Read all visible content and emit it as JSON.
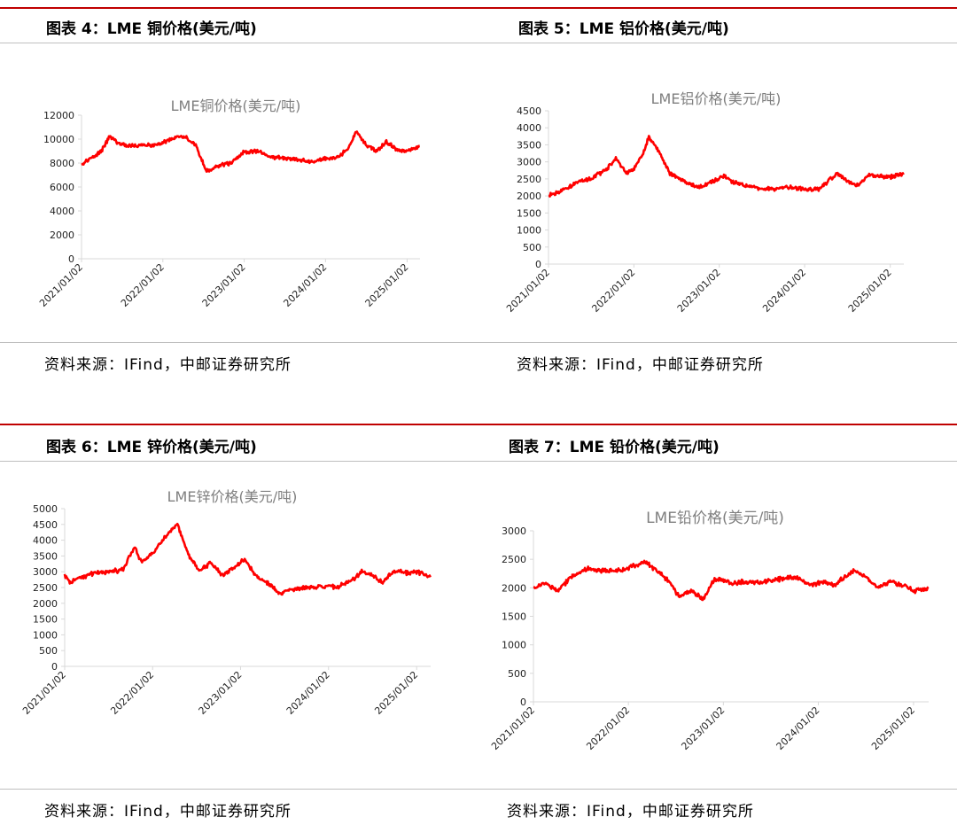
{
  "panels": [
    {
      "id": "p4",
      "figure_title": "图表 4：LME 铜价格(美元/吨)",
      "source": "资料来源：IFind，中邮证券研究所"
    },
    {
      "id": "p5",
      "figure_title": "图表 5：LME 铝价格(美元/吨)",
      "source": "资料来源：IFind，中邮证券研究所"
    },
    {
      "id": "p6",
      "figure_title": "图表 6：LME 锌价格(美元/吨)",
      "source": "资料来源：IFind，中邮证券研究所"
    },
    {
      "id": "p7",
      "figure_title": "图表 7：LME 铅价格(美元/吨)",
      "source": "资料来源：IFind，中邮证券研究所"
    }
  ],
  "colors": {
    "line": "#ff0000",
    "rule": "#c00000",
    "title": "#7f7f7f"
  },
  "chart_data": [
    {
      "type": "line",
      "title": "LME铜价格(美元/吨)",
      "xlabel": "",
      "ylabel": "",
      "ylim": [
        0,
        12000
      ],
      "yticks": [
        0,
        2000,
        4000,
        6000,
        8000,
        10000,
        12000
      ],
      "x_tick_labels": [
        "2021/01/02",
        "2022/01/02",
        "2023/01/02",
        "2024/01/02",
        "2025/01/02"
      ],
      "xlim": [
        "2021/01/02",
        "2025/03/01"
      ],
      "grid": false,
      "series": [
        {
          "color": "#ff0000",
          "x": [
            "2021/01/02",
            "2021/02/15",
            "2021/04/01",
            "2021/05/10",
            "2021/06/20",
            "2021/08/01",
            "2021/10/01",
            "2021/12/01",
            "2022/01/02",
            "2022/03/07",
            "2022/04/20",
            "2022/06/01",
            "2022/07/15",
            "2022/09/01",
            "2022/11/01",
            "2023/01/02",
            "2023/03/01",
            "2023/05/01",
            "2023/07/01",
            "2023/09/01",
            "2023/11/01",
            "2024/01/02",
            "2024/03/01",
            "2024/04/15",
            "2024/05/20",
            "2024/07/01",
            "2024/08/20",
            "2024/10/01",
            "2024/11/15",
            "2025/01/02",
            "2025/02/15",
            "2025/03/01"
          ],
          "y": [
            7900,
            8400,
            9000,
            10300,
            9600,
            9400,
            9500,
            9500,
            9700,
            10200,
            10100,
            9400,
            7300,
            7700,
            8000,
            8900,
            9000,
            8500,
            8400,
            8300,
            8100,
            8400,
            8500,
            9300,
            10700,
            9500,
            9000,
            9800,
            9100,
            9000,
            9300,
            9400
          ]
        }
      ]
    },
    {
      "type": "line",
      "title": "LME铝价格(美元/吨)",
      "xlabel": "",
      "ylabel": "",
      "ylim": [
        0,
        4500
      ],
      "yticks": [
        0,
        500,
        1000,
        1500,
        2000,
        2500,
        3000,
        3500,
        4000,
        4500
      ],
      "x_tick_labels": [
        "2021/01/02",
        "2022/01/02",
        "2023/01/02",
        "2024/01/02",
        "2025/01/02"
      ],
      "xlim": [
        "2021/01/02",
        "2025/03/01"
      ],
      "grid": false,
      "series": [
        {
          "color": "#ff0000",
          "x": [
            "2021/01/02",
            "2021/03/01",
            "2021/05/01",
            "2021/07/01",
            "2021/09/01",
            "2021/10/20",
            "2021/12/01",
            "2022/01/02",
            "2022/02/15",
            "2022/03/07",
            "2022/04/20",
            "2022/06/01",
            "2022/08/01",
            "2022/10/01",
            "2022/12/01",
            "2023/01/20",
            "2023/03/01",
            "2023/05/01",
            "2023/07/01",
            "2023/09/01",
            "2023/11/01",
            "2024/01/02",
            "2024/03/01",
            "2024/05/20",
            "2024/07/01",
            "2024/08/15",
            "2024/10/01",
            "2024/11/15",
            "2025/01/02",
            "2025/02/15",
            "2025/03/01"
          ],
          "y": [
            2000,
            2150,
            2400,
            2500,
            2750,
            3100,
            2650,
            2800,
            3300,
            3750,
            3300,
            2700,
            2450,
            2250,
            2400,
            2600,
            2400,
            2300,
            2200,
            2200,
            2250,
            2200,
            2200,
            2650,
            2450,
            2300,
            2600,
            2600,
            2550,
            2650,
            2650
          ]
        }
      ]
    },
    {
      "type": "line",
      "title": "LME锌价格(美元/吨)",
      "xlabel": "",
      "ylabel": "",
      "ylim": [
        0,
        5000
      ],
      "yticks": [
        0,
        500,
        1000,
        1500,
        2000,
        2500,
        3000,
        3500,
        4000,
        4500,
        5000
      ],
      "x_tick_labels": [
        "2021/01/02",
        "2022/01/02",
        "2023/01/02",
        "2024/01/02",
        "2025/01/02"
      ],
      "xlim": [
        "2021/01/02",
        "2025/03/01"
      ],
      "grid": false,
      "series": [
        {
          "color": "#ff0000",
          "x": [
            "2021/01/02",
            "2021/01/25",
            "2021/03/01",
            "2021/05/01",
            "2021/07/01",
            "2021/09/01",
            "2021/10/18",
            "2021/11/15",
            "2022/01/02",
            "2022/03/07",
            "2022/04/15",
            "2022/06/01",
            "2022/07/15",
            "2022/09/01",
            "2022/10/15",
            "2022/12/01",
            "2023/01/20",
            "2023/03/01",
            "2023/05/01",
            "2023/06/15",
            "2023/08/01",
            "2023/10/01",
            "2023/12/01",
            "2024/02/01",
            "2024/04/01",
            "2024/05/20",
            "2024/07/01",
            "2024/08/15",
            "2024/10/01",
            "2024/11/20",
            "2025/01/02",
            "2025/03/01"
          ],
          "y": [
            2900,
            2650,
            2800,
            2950,
            3000,
            3050,
            3800,
            3300,
            3600,
            4200,
            4500,
            3500,
            3000,
            3300,
            2900,
            3100,
            3400,
            2900,
            2600,
            2300,
            2450,
            2500,
            2550,
            2500,
            2700,
            3000,
            2900,
            2650,
            3050,
            2950,
            3000,
            2850
          ]
        }
      ]
    },
    {
      "type": "line",
      "title": "LME铅价格(美元/吨)",
      "xlabel": "",
      "ylabel": "",
      "ylim": [
        0,
        3000
      ],
      "yticks": [
        0,
        500,
        1000,
        1500,
        2000,
        2500,
        3000
      ],
      "x_tick_labels": [
        "2021/01/02",
        "2022/01/02",
        "2023/01/02",
        "2024/01/02",
        "2025/01/02"
      ],
      "xlim": [
        "2021/01/02",
        "2025/03/01"
      ],
      "grid": false,
      "series": [
        {
          "color": "#ff0000",
          "x": [
            "2021/01/02",
            "2021/02/15",
            "2021/04/01",
            "2021/06/01",
            "2021/08/01",
            "2021/10/01",
            "2021/12/01",
            "2022/01/02",
            "2022/03/07",
            "2022/04/20",
            "2022/06/01",
            "2022/07/15",
            "2022/09/01",
            "2022/10/15",
            "2022/12/01",
            "2023/02/01",
            "2023/04/01",
            "2023/06/01",
            "2023/08/01",
            "2023/10/01",
            "2023/12/01",
            "2024/01/20",
            "2024/03/01",
            "2024/05/20",
            "2024/07/01",
            "2024/08/15",
            "2024/10/01",
            "2024/11/20",
            "2025/01/02",
            "2025/03/01"
          ],
          "y": [
            2000,
            2100,
            1950,
            2200,
            2350,
            2300,
            2300,
            2350,
            2450,
            2300,
            2150,
            1850,
            1950,
            1800,
            2150,
            2100,
            2100,
            2100,
            2150,
            2200,
            2050,
            2100,
            2050,
            2300,
            2200,
            2000,
            2100,
            2050,
            1950,
            2000
          ]
        }
      ]
    }
  ]
}
